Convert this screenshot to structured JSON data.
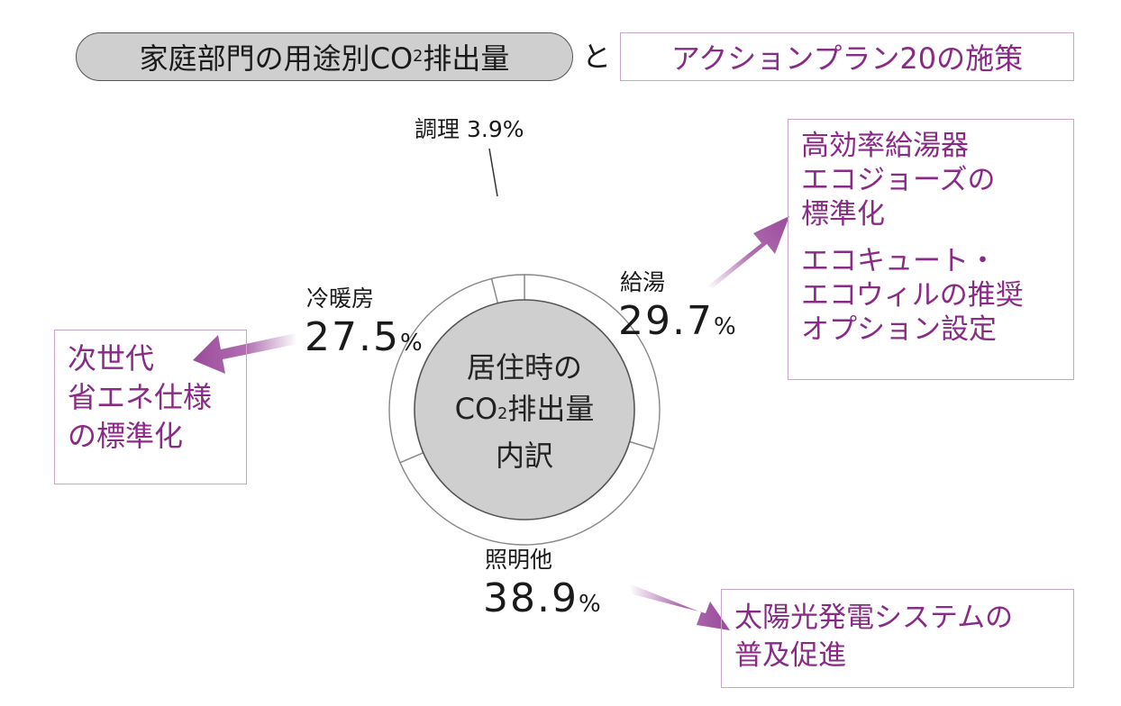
{
  "header": {
    "title_main": "家庭部門の用途別CO",
    "title_main_sub": "2",
    "title_main_tail": "排出量",
    "connector": "と",
    "title_plan": "アクションプラン20の施策"
  },
  "center": {
    "line1": "居住時の",
    "line2_pre": "CO",
    "line2_sub": "2",
    "line2_post": "排出量",
    "line3": "内訳"
  },
  "chart_data": {
    "type": "pie",
    "title": "",
    "categories": [
      "給湯",
      "照明他",
      "冷暖房",
      "調理"
    ],
    "values": [
      29.7,
      38.9,
      27.5,
      3.9
    ],
    "unit": "%"
  },
  "labels": {
    "cooking": {
      "name": "調理",
      "value": "3.9%"
    },
    "hotwater": {
      "name": "給湯",
      "value": "29.7",
      "pct": "%"
    },
    "cooling": {
      "name": "冷暖房",
      "value": "27.5",
      "pct": "%"
    },
    "lighting": {
      "name": "照明他",
      "value": "38.9",
      "pct": "%"
    }
  },
  "actions": {
    "hotwater": {
      "lines_a": [
        "高効率給湯器",
        "エコジョーズの",
        "標準化"
      ],
      "lines_b": [
        "エコキュート・",
        "エコウィルの推奨",
        "オプション設定"
      ]
    },
    "cooling": {
      "lines": [
        "次世代",
        "省エネ仕様",
        "の標準化"
      ]
    },
    "lighting": {
      "lines": [
        "太陽光発電システムの",
        "普及促進"
      ]
    }
  },
  "colors": {
    "accent": "#8a2a87",
    "arrow": "#9b4a9b",
    "pie_fill": "#cfcfcf",
    "box_border": "#c9a6c9"
  }
}
